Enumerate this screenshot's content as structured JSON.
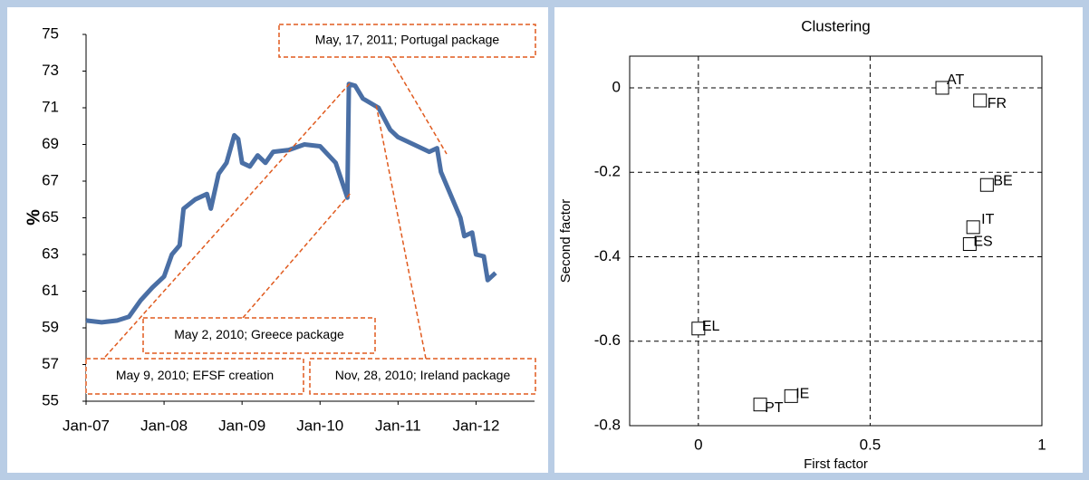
{
  "chart_data": [
    {
      "type": "line",
      "ylabel": "%",
      "x": [
        2007.0,
        2007.2,
        2007.4,
        2007.55,
        2007.7,
        2007.85,
        2008.0,
        2008.1,
        2008.2,
        2008.25,
        2008.4,
        2008.55,
        2008.6,
        2008.7,
        2008.8,
        2008.9,
        2008.95,
        2009.0,
        2009.1,
        2009.2,
        2009.3,
        2009.4,
        2009.6,
        2009.8,
        2010.0,
        2010.2,
        2010.35,
        2010.37,
        2010.45,
        2010.55,
        2010.75,
        2010.9,
        2011.0,
        2011.2,
        2011.4,
        2011.5,
        2011.55,
        2011.65,
        2011.8,
        2011.85,
        2011.95,
        2012.0,
        2012.1,
        2012.15,
        2012.25
      ],
      "series": [
        {
          "color": "#4a6fa5",
          "values": [
            59.4,
            59.3,
            59.4,
            59.6,
            60.5,
            61.2,
            61.8,
            63,
            63.5,
            65.5,
            66,
            66.3,
            65.5,
            67.4,
            68.0,
            69.5,
            69.3,
            68.0,
            67.8,
            68.4,
            68.0,
            68.6,
            68.7,
            69.0,
            68.9,
            68.0,
            66.1,
            72.3,
            72.2,
            71.5,
            71.0,
            69.8,
            69.4,
            69.0,
            68.6,
            68.8,
            67.5,
            66.5,
            65.0,
            64.0,
            64.2,
            63.0,
            62.9,
            61.6,
            62.0
          ]
        }
      ],
      "xlim": [
        2007,
        2012.75
      ],
      "xticks": [
        {
          "value": 2007,
          "label": "Jan-07"
        },
        {
          "value": 2008,
          "label": "Jan-08"
        },
        {
          "value": 2009,
          "label": "Jan-09"
        },
        {
          "value": 2010,
          "label": "Jan-10"
        },
        {
          "value": 2011,
          "label": "Jan-11"
        },
        {
          "value": 2012,
          "label": "Jan-12"
        }
      ],
      "ylim": [
        55,
        75
      ],
      "yticks": [
        55,
        57,
        59,
        61,
        63,
        65,
        67,
        69,
        71,
        73,
        75
      ],
      "annotations": [
        "May, 17, 2011; Portugal package",
        "May 2, 2010; Greece package",
        "May 9, 2010; EFSF creation",
        "Nov, 28, 2010; Ireland package"
      ],
      "annotation_color": "#e05a1e"
    },
    {
      "type": "scatter",
      "title": "Clustering",
      "xlabel": "First factor",
      "ylabel": "Second factor",
      "labels": [
        "AT",
        "FR",
        "BE",
        "IT",
        "ES",
        "EL",
        "PT",
        "IE"
      ],
      "x": [
        0.71,
        0.82,
        0.84,
        0.8,
        0.79,
        0.0,
        0.18,
        0.27
      ],
      "values": [
        0.0,
        -0.03,
        -0.23,
        -0.33,
        -0.37,
        -0.57,
        -0.75,
        -0.73
      ],
      "xlim": [
        -0.2,
        1
      ],
      "xticks": [
        0,
        0.5,
        1
      ],
      "ylim": [
        -0.8,
        0.075
      ],
      "yticks": [
        0,
        -0.2,
        -0.4,
        -0.6,
        -0.8
      ],
      "grid": true
    }
  ]
}
